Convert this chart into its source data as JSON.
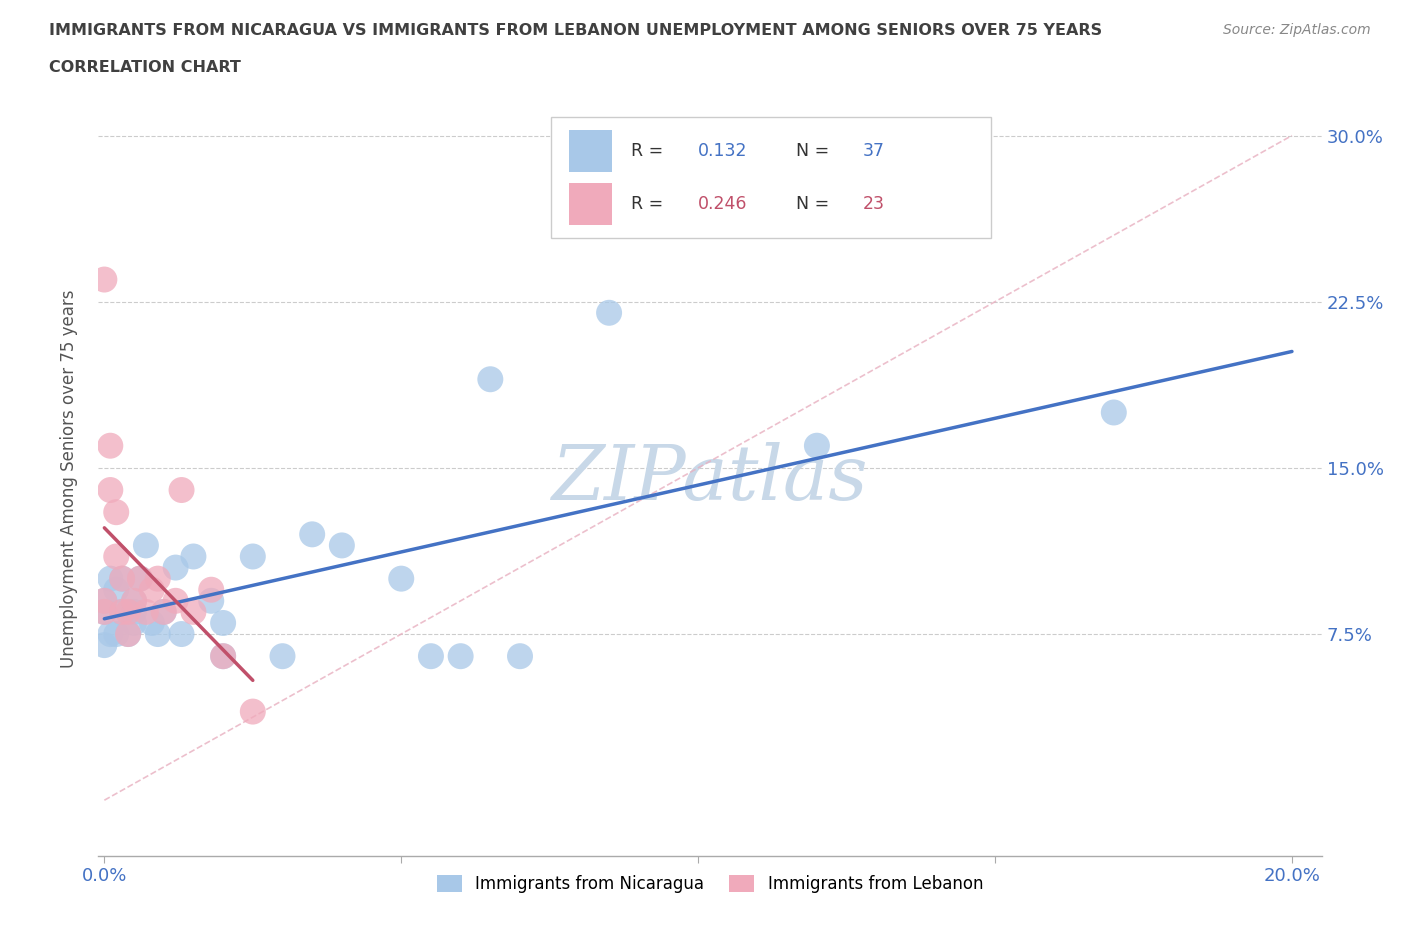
{
  "title_line1": "IMMIGRANTS FROM NICARAGUA VS IMMIGRANTS FROM LEBANON UNEMPLOYMENT AMONG SENIORS OVER 75 YEARS",
  "title_line2": "CORRELATION CHART",
  "source_text": "Source: ZipAtlas.com",
  "ylabel": "Unemployment Among Seniors over 75 years",
  "xlim": [
    -0.001,
    0.205
  ],
  "ylim": [
    -0.025,
    0.315
  ],
  "ytick_positions": [
    0.075,
    0.15,
    0.225,
    0.3
  ],
  "ytick_labels": [
    "7.5%",
    "15.0%",
    "22.5%",
    "30.0%"
  ],
  "nicaragua_color": "#a8c8e8",
  "lebanon_color": "#f0aabb",
  "nicaragua_line_color": "#4472c4",
  "lebanon_line_color": "#c0506a",
  "nicaragua_R": "0.132",
  "nicaragua_N": "37",
  "lebanon_R": "0.246",
  "lebanon_N": "23",
  "nicaragua_x": [
    0.0,
    0.0,
    0.0,
    0.001,
    0.001,
    0.002,
    0.002,
    0.003,
    0.003,
    0.004,
    0.004,
    0.005,
    0.005,
    0.005,
    0.006,
    0.007,
    0.008,
    0.009,
    0.01,
    0.012,
    0.013,
    0.015,
    0.018,
    0.02,
    0.02,
    0.025,
    0.03,
    0.035,
    0.04,
    0.05,
    0.055,
    0.06,
    0.065,
    0.07,
    0.085,
    0.12,
    0.17
  ],
  "nicaragua_y": [
    0.07,
    0.085,
    0.09,
    0.1,
    0.075,
    0.095,
    0.075,
    0.1,
    0.085,
    0.085,
    0.075,
    0.09,
    0.085,
    0.08,
    0.1,
    0.115,
    0.08,
    0.075,
    0.085,
    0.105,
    0.075,
    0.11,
    0.09,
    0.08,
    0.065,
    0.11,
    0.065,
    0.12,
    0.115,
    0.1,
    0.065,
    0.065,
    0.19,
    0.065,
    0.22,
    0.16,
    0.175
  ],
  "lebanon_x": [
    0.0,
    0.0,
    0.0,
    0.001,
    0.001,
    0.002,
    0.002,
    0.003,
    0.003,
    0.004,
    0.004,
    0.005,
    0.006,
    0.007,
    0.008,
    0.009,
    0.01,
    0.012,
    0.013,
    0.015,
    0.018,
    0.02,
    0.025
  ],
  "lebanon_y": [
    0.085,
    0.09,
    0.235,
    0.14,
    0.16,
    0.13,
    0.11,
    0.1,
    0.085,
    0.085,
    0.075,
    0.09,
    0.1,
    0.085,
    0.095,
    0.1,
    0.085,
    0.09,
    0.14,
    0.085,
    0.095,
    0.065,
    0.04
  ],
  "ref_line_x": [
    0.0,
    0.2
  ],
  "ref_line_y": [
    0.0,
    0.3
  ],
  "background_color": "#ffffff",
  "title_color": "#404040",
  "watermark_text": "ZIPatlas",
  "watermark_color": "#c8d8e8"
}
